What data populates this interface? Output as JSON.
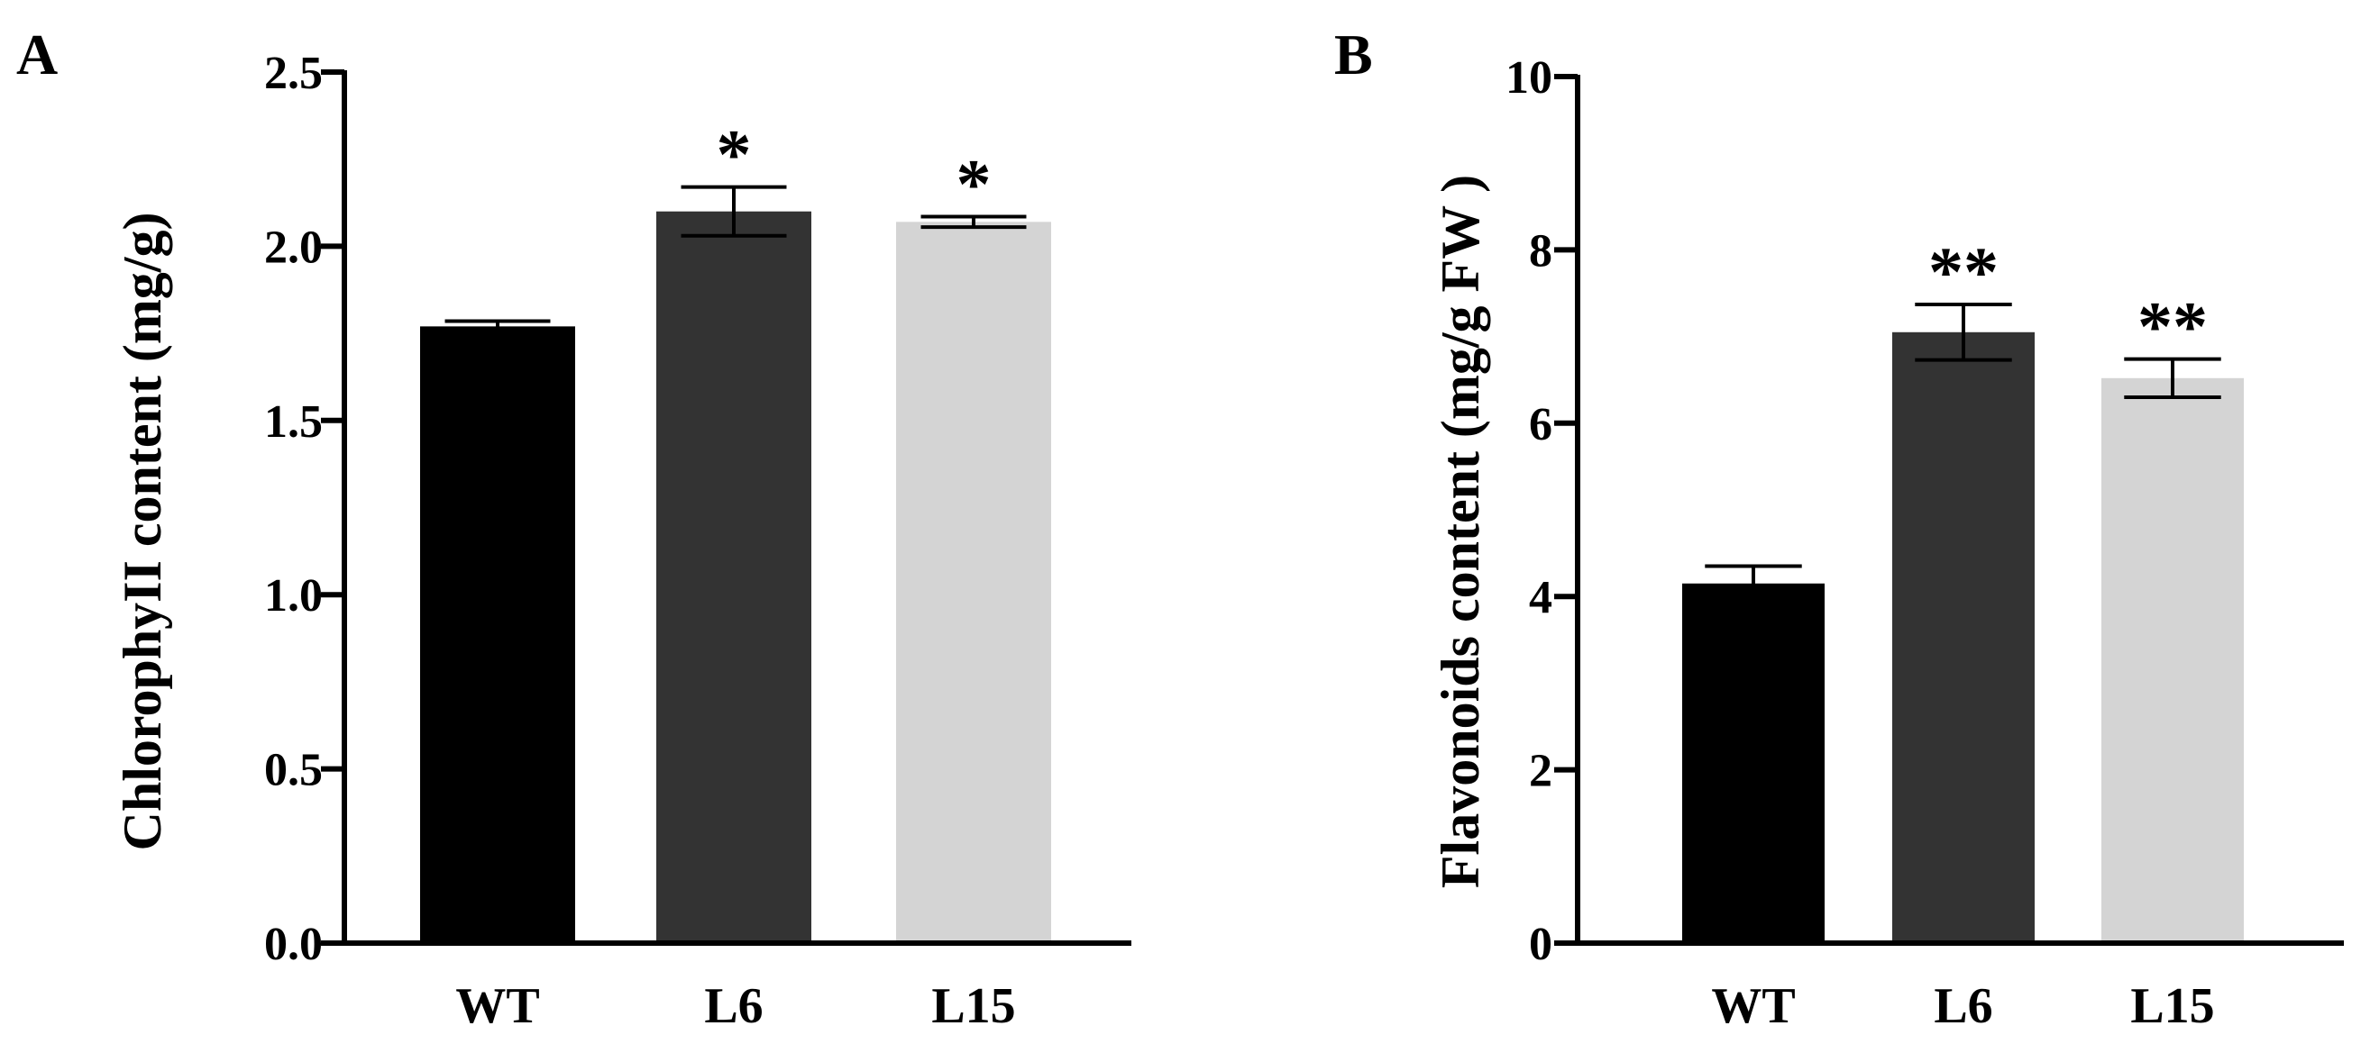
{
  "chart_data": [
    {
      "panel": "A",
      "type": "bar",
      "categories": [
        "WT",
        "L6",
        "L15"
      ],
      "values": [
        1.77,
        2.1,
        2.07
      ],
      "errors": [
        0.015,
        0.07,
        0.015
      ],
      "significance": [
        "",
        "*",
        "*"
      ],
      "colors": [
        "#000000",
        "#333333",
        "#d4d4d4"
      ],
      "ylabel": "ChlorophyII  content (mg/g)",
      "xlabel": "",
      "ylim": [
        0,
        2.5
      ],
      "yticks": [
        0.0,
        0.5,
        1.0,
        1.5,
        2.0,
        2.5
      ],
      "ytick_labels": [
        "0.0",
        "0.5",
        "1.0",
        "1.5",
        "2.0",
        "2.5"
      ],
      "grid": false
    },
    {
      "panel": "B",
      "type": "bar",
      "categories": [
        "WT",
        "L6",
        "L15"
      ],
      "values": [
        4.15,
        7.05,
        6.52
      ],
      "errors": [
        0.2,
        0.32,
        0.22
      ],
      "significance": [
        "",
        "**",
        "**"
      ],
      "colors": [
        "#000000",
        "#333333",
        "#d4d4d4"
      ],
      "ylabel": "Flavonoids content (mg/g FW )",
      "xlabel": "",
      "ylim": [
        0,
        10
      ],
      "yticks": [
        0,
        2,
        4,
        6,
        8,
        10
      ],
      "ytick_labels": [
        "0",
        "2",
        "4",
        "6",
        "8",
        "10"
      ],
      "grid": false
    }
  ]
}
